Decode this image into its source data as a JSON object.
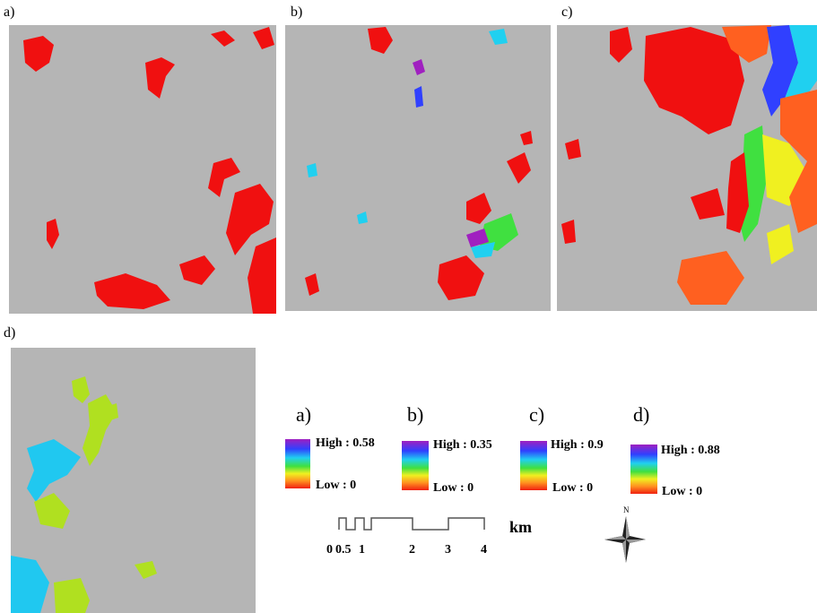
{
  "panels": [
    {
      "label": "a)"
    },
    {
      "label": "b)"
    },
    {
      "label": "c)"
    },
    {
      "label": "d)"
    }
  ],
  "legends": [
    {
      "label": "a)",
      "high": "High : 0.58",
      "low": "Low : 0"
    },
    {
      "label": "b)",
      "high": "High : 0.35",
      "low": "Low : 0"
    },
    {
      "label": "c)",
      "high": "High : 0.9",
      "low": "Low : 0"
    },
    {
      "label": "d)",
      "high": "High : 0.88",
      "low": "Low : 0"
    }
  ],
  "scale_bar": {
    "labels": [
      "0",
      "0.5",
      "1",
      "2",
      "3",
      "4"
    ],
    "unit": "km"
  },
  "north_arrow": {
    "label": "N"
  }
}
